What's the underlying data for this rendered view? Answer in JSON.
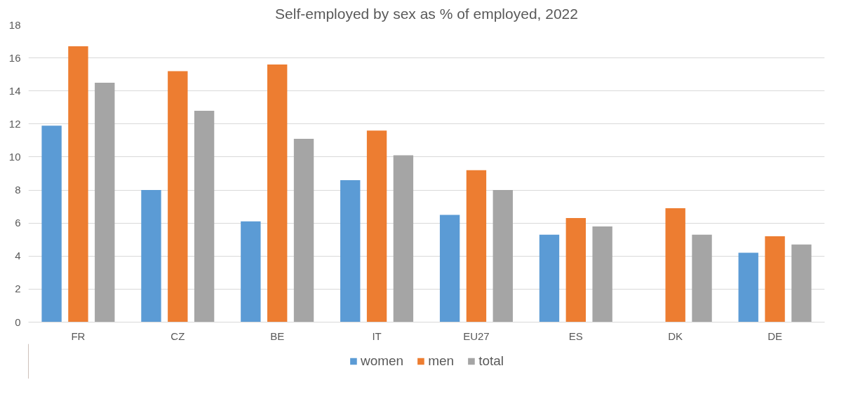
{
  "chart_data": {
    "type": "bar",
    "title": "Self-employed by sex as % of employed, 2022",
    "categories": [
      "FR",
      "CZ",
      "BE",
      "IT",
      "EU27",
      "ES",
      "DK",
      "DE"
    ],
    "series": [
      {
        "name": "women",
        "color": "#5b9bd5",
        "values": [
          11.9,
          8.0,
          6.1,
          8.6,
          6.5,
          5.3,
          null,
          4.2
        ]
      },
      {
        "name": "men",
        "color": "#ed7d31",
        "values": [
          16.7,
          15.2,
          15.6,
          11.6,
          9.2,
          6.3,
          6.9,
          5.2
        ]
      },
      {
        "name": "total",
        "color": "#a5a5a5",
        "values": [
          14.5,
          12.8,
          11.1,
          10.1,
          8.0,
          5.8,
          5.3,
          4.7
        ]
      }
    ],
    "ylim": [
      0,
      18
    ],
    "yticks": [
      0,
      2,
      4,
      6,
      8,
      10,
      12,
      14,
      16,
      18
    ],
    "grid": "y",
    "legend": "bottom"
  }
}
